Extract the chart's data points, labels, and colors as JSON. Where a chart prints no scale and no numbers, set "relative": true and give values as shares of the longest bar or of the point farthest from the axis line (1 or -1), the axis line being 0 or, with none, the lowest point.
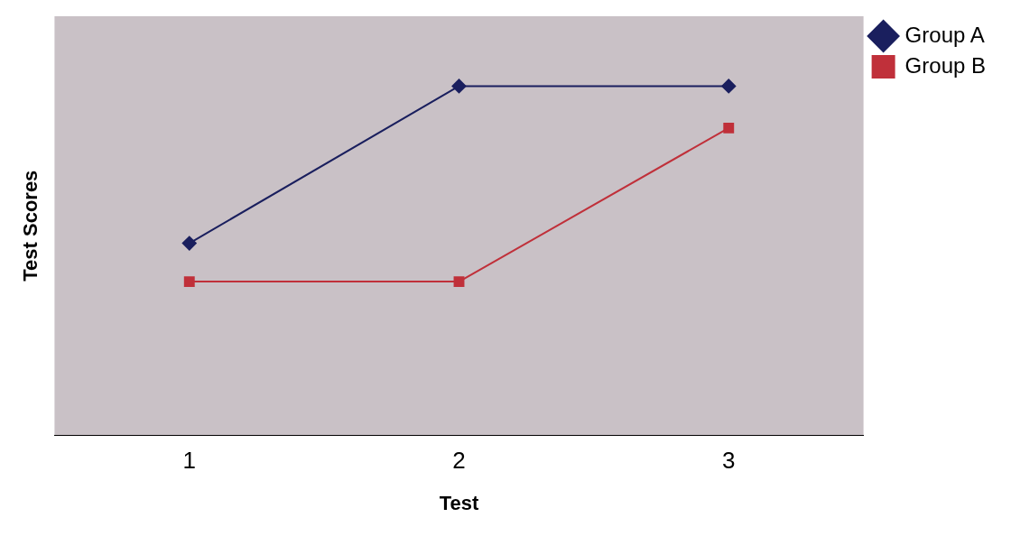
{
  "chart_data": {
    "type": "line",
    "relative": true,
    "xlabel": "Test",
    "ylabel": "Test Scores",
    "categories": [
      "1",
      "2",
      "3"
    ],
    "legend": "top right",
    "grid": false,
    "series": [
      {
        "name": "Group A",
        "color": "#1a1f5e",
        "marker": "diamond",
        "values": [
          0.55,
          1,
          1
        ]
      },
      {
        "name": "Group B",
        "color": "#c0303a",
        "marker": "square",
        "values": [
          0.44,
          0.44,
          0.88
        ]
      }
    ]
  }
}
